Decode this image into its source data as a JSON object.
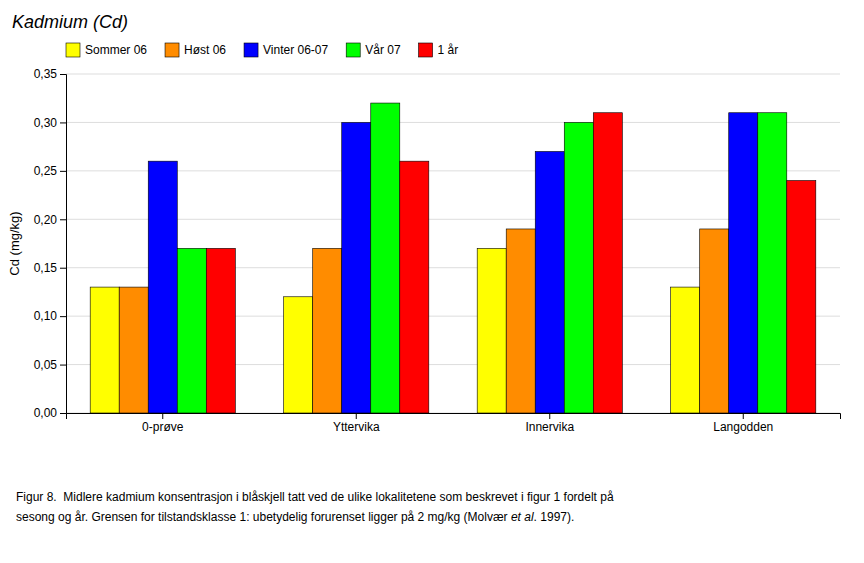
{
  "chart_data": {
    "type": "bar",
    "title": "Kadmium (Cd)",
    "y_label": "Cd (mg/kg)",
    "categories": [
      "0-prøve",
      "Yttervika",
      "Innervika",
      "Langodden"
    ],
    "series": [
      {
        "name": "Sommer 06",
        "color": "#FFFF00",
        "values": [
          0.13,
          0.12,
          0.17,
          0.13
        ]
      },
      {
        "name": "Høst 06",
        "color": "#FF8C00",
        "values": [
          0.13,
          0.17,
          0.19,
          0.19
        ]
      },
      {
        "name": "Vinter 06-07",
        "color": "#0000FF",
        "values": [
          0.26,
          0.3,
          0.27,
          0.31
        ]
      },
      {
        "name": "Vår 07",
        "color": "#00FF00",
        "values": [
          0.17,
          0.32,
          0.3,
          0.31
        ]
      },
      {
        "name": "1 år",
        "color": "#FF0000",
        "values": [
          0.17,
          0.26,
          0.31,
          0.24
        ]
      }
    ],
    "ylim": [
      0.0,
      0.35
    ],
    "yticks": [
      {
        "value": 0.0,
        "label": "0,00"
      },
      {
        "value": 0.05,
        "label": "0,05"
      },
      {
        "value": 0.1,
        "label": "0,10"
      },
      {
        "value": 0.15,
        "label": "0,15"
      },
      {
        "value": 0.2,
        "label": "0,20"
      },
      {
        "value": 0.25,
        "label": "0,25"
      },
      {
        "value": 0.3,
        "label": "0,30"
      },
      {
        "value": 0.35,
        "label": "0,35"
      }
    ],
    "grid": true,
    "legend": "upper left",
    "annotations": [
      "Figur 8.  Midlere kadmium konsentrasjon i blåskjell tatt ved de ulike lokalitetene som beskrevet i figur 1 fordelt på",
      "sesong og år. Grensen for tilstandsklasse 1: ubetydelig forurenset ligger på 2 mg/kg (Molvær ",
      "et al",
      ". 1997)."
    ]
  }
}
